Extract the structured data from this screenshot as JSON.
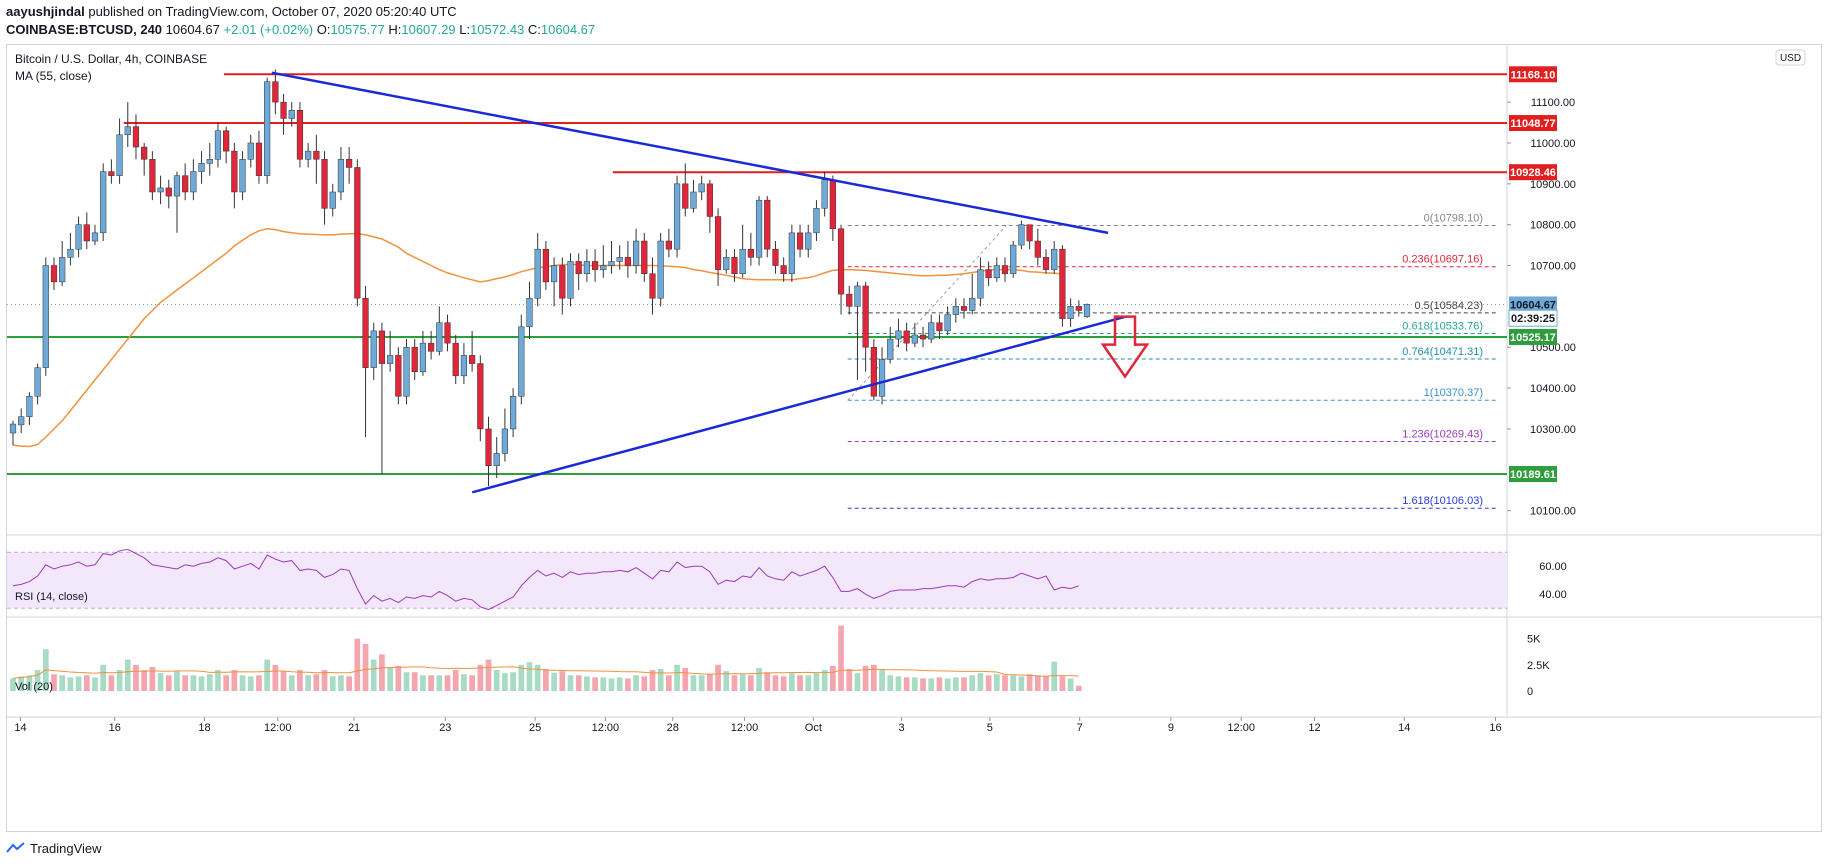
{
  "header": {
    "author": "aayushjindal",
    "published": "published on TradingView.com, October 07, 2020 05:20:40 UTC",
    "symbol": "COINBASE:BTCUSD, 240",
    "last": "10604.67",
    "change": "+2.01 (+0.02%)",
    "o_label": "O:",
    "o": "10575.77",
    "h_label": "H:",
    "h": "10607.29",
    "l_label": "L:",
    "l": "10572.43",
    "c_label": "C:",
    "c": "10604.67"
  },
  "legend": {
    "title": "Bitcoin / U.S. Dollar, 4h, COINBASE",
    "ma": "MA (55, close)",
    "currency": "USD",
    "rsi": "RSI (14, close)",
    "vol": "Vol (20)"
  },
  "footer": {
    "brand": "TradingView"
  },
  "colors": {
    "up": "#6ea9d8",
    "down": "#e0263a",
    "ma": "#f0923e",
    "trend": "#1a2bd6",
    "resistance": "#e02020",
    "support": "#2e9e3c",
    "rsi": "#9c3cb8",
    "vol_up": "#a8dbc4",
    "vol_down": "#f4a6ae",
    "arrow": "#e0263a"
  },
  "chart_data": {
    "type": "candlestick",
    "x_ticks": [
      "14",
      "16",
      "18",
      "12:00",
      "21",
      "23",
      "25",
      "12:00",
      "28",
      "12:00",
      "Oct",
      "3",
      "5",
      "7",
      "9",
      "12:00",
      "12",
      "14",
      "16"
    ],
    "y_ticks": [
      "11100.00",
      "11000.00",
      "10900.00",
      "10800.00",
      "10700.00",
      "10500.00",
      "10400.00",
      "10300.00",
      "10100.00"
    ],
    "ylim": [
      10060,
      11230
    ],
    "price_labels": [
      {
        "value": 11168.1,
        "text": "11168.10",
        "kind": "resistance"
      },
      {
        "value": 11048.77,
        "text": "11048.77",
        "kind": "resistance"
      },
      {
        "value": 10928.46,
        "text": "10928.46",
        "kind": "resistance"
      },
      {
        "value": 10604.67,
        "text": "10604.67",
        "kind": "last"
      },
      {
        "value": 10571.0,
        "text": "02:39:25",
        "kind": "timer"
      },
      {
        "value": 10525.17,
        "text": "10525.17",
        "kind": "support"
      },
      {
        "value": 10189.61,
        "text": "10189.61",
        "kind": "support"
      }
    ],
    "horizontal_levels": [
      {
        "value": 11168.1,
        "from": 0.145,
        "kind": "resistance"
      },
      {
        "value": 11048.77,
        "from": 0.078,
        "kind": "resistance"
      },
      {
        "value": 10928.46,
        "from": 0.405,
        "kind": "resistance"
      },
      {
        "value": 10525.17,
        "from": 0.0,
        "kind": "support"
      },
      {
        "value": 10189.61,
        "from": 0.0,
        "kind": "support"
      }
    ],
    "fibonacci": [
      {
        "ratio": "0",
        "label": "0(10798.10)",
        "value": 10798.1,
        "color": "#888888"
      },
      {
        "ratio": "0.236",
        "label": "0.236(10697.16)",
        "value": 10697.16,
        "color": "#e0263a"
      },
      {
        "ratio": "0.5",
        "label": "0.5(10584.23)",
        "value": 10584.23,
        "color": "#444444"
      },
      {
        "ratio": "0.618",
        "label": "0.618(10533.76)",
        "value": 10533.76,
        "color": "#26a69a"
      },
      {
        "ratio": "0.764",
        "label": "0.764(10471.31)",
        "value": 10471.31,
        "color": "#1f8fae"
      },
      {
        "ratio": "1",
        "label": "1(10370.37)",
        "value": 10370.37,
        "color": "#3b8fd6"
      },
      {
        "ratio": "1.236",
        "label": "1.236(10269.43)",
        "value": 10269.43,
        "color": "#9c3cb8"
      },
      {
        "ratio": "1.618",
        "label": "1.618(10106.03)",
        "value": 10106.03,
        "color": "#2a3bd6"
      }
    ],
    "trendlines": [
      {
        "name": "upper",
        "x1": 0.177,
        "y1": 11172,
        "x2": 0.736,
        "y2": 10780
      },
      {
        "name": "lower",
        "x1": 0.311,
        "y1": 10145,
        "x2": 0.748,
        "y2": 10575
      }
    ],
    "fib_window": [
      0.562,
      0.735
    ],
    "candles": [
      [
        10290,
        10312,
        10260,
        10320
      ],
      [
        10310,
        10330,
        10290,
        10350
      ],
      [
        10330,
        10380,
        10310,
        10390
      ],
      [
        10380,
        10450,
        10360,
        10460
      ],
      [
        10450,
        10700,
        10430,
        10720
      ],
      [
        10700,
        10660,
        10640,
        10720
      ],
      [
        10660,
        10720,
        10650,
        10760
      ],
      [
        10720,
        10740,
        10700,
        10780
      ],
      [
        10740,
        10800,
        10720,
        10820
      ],
      [
        10800,
        10760,
        10740,
        10830
      ],
      [
        10760,
        10780,
        10750,
        10800
      ],
      [
        10780,
        10930,
        10760,
        10950
      ],
      [
        10930,
        10920,
        10900,
        10960
      ],
      [
        10920,
        11020,
        10900,
        11060
      ],
      [
        11020,
        11040,
        10990,
        11100
      ],
      [
        11040,
        10990,
        10960,
        11070
      ],
      [
        10990,
        10960,
        10920,
        11000
      ],
      [
        10960,
        10880,
        10860,
        10980
      ],
      [
        10880,
        10890,
        10850,
        10920
      ],
      [
        10890,
        10870,
        10840,
        10910
      ],
      [
        10870,
        10920,
        10780,
        10930
      ],
      [
        10920,
        10880,
        10860,
        10950
      ],
      [
        10880,
        10930,
        10860,
        10960
      ],
      [
        10930,
        10950,
        10900,
        10980
      ],
      [
        10950,
        10960,
        10920,
        11000
      ],
      [
        10960,
        11030,
        10940,
        11050
      ],
      [
        11030,
        10980,
        10950,
        11040
      ],
      [
        10980,
        10880,
        10840,
        11000
      ],
      [
        10880,
        10960,
        10860,
        10980
      ],
      [
        10960,
        11000,
        10940,
        11020
      ],
      [
        11000,
        10920,
        10900,
        11030
      ],
      [
        10920,
        11150,
        10900,
        11160
      ],
      [
        11150,
        11100,
        11070,
        11180
      ],
      [
        11100,
        11060,
        11020,
        11120
      ],
      [
        11060,
        11080,
        11040,
        11100
      ],
      [
        11080,
        10960,
        10940,
        11100
      ],
      [
        10960,
        10980,
        10940,
        11000
      ],
      [
        10980,
        10960,
        10900,
        11020
      ],
      [
        10960,
        10840,
        10800,
        10980
      ],
      [
        10840,
        10880,
        10820,
        10900
      ],
      [
        10880,
        10960,
        10860,
        10990
      ],
      [
        10960,
        10940,
        10900,
        10990
      ],
      [
        10940,
        10620,
        10600,
        10960
      ],
      [
        10620,
        10450,
        10280,
        10650
      ],
      [
        10450,
        10540,
        10420,
        10560
      ],
      [
        10540,
        10460,
        10190,
        10560
      ],
      [
        10460,
        10480,
        10440,
        10540
      ],
      [
        10480,
        10380,
        10360,
        10500
      ],
      [
        10380,
        10500,
        10360,
        10520
      ],
      [
        10500,
        10440,
        10420,
        10520
      ],
      [
        10440,
        10510,
        10430,
        10540
      ],
      [
        10510,
        10490,
        10470,
        10540
      ],
      [
        10490,
        10560,
        10480,
        10600
      ],
      [
        10560,
        10510,
        10490,
        10580
      ],
      [
        10510,
        10430,
        10410,
        10530
      ],
      [
        10430,
        10480,
        10410,
        10510
      ],
      [
        10480,
        10460,
        10440,
        10540
      ],
      [
        10460,
        10300,
        10270,
        10480
      ],
      [
        10300,
        10210,
        10160,
        10330
      ],
      [
        10210,
        10240,
        10180,
        10280
      ],
      [
        10240,
        10300,
        10220,
        10350
      ],
      [
        10300,
        10380,
        10280,
        10400
      ],
      [
        10380,
        10550,
        10360,
        10580
      ],
      [
        10550,
        10620,
        10520,
        10660
      ],
      [
        10620,
        10740,
        10600,
        10780
      ],
      [
        10740,
        10660,
        10640,
        10760
      ],
      [
        10660,
        10700,
        10600,
        10720
      ],
      [
        10700,
        10620,
        10580,
        10720
      ],
      [
        10620,
        10710,
        10600,
        10730
      ],
      [
        10710,
        10680,
        10640,
        10730
      ],
      [
        10680,
        10710,
        10660,
        10740
      ],
      [
        10710,
        10690,
        10660,
        10740
      ],
      [
        10690,
        10700,
        10670,
        10750
      ],
      [
        10700,
        10710,
        10680,
        10760
      ],
      [
        10710,
        10720,
        10690,
        10750
      ],
      [
        10720,
        10700,
        10670,
        10760
      ],
      [
        10700,
        10760,
        10680,
        10790
      ],
      [
        10760,
        10680,
        10660,
        10780
      ],
      [
        10680,
        10620,
        10580,
        10720
      ],
      [
        10620,
        10760,
        10600,
        10780
      ],
      [
        10760,
        10740,
        10720,
        10790
      ],
      [
        10740,
        10900,
        10720,
        10920
      ],
      [
        10900,
        10840,
        10820,
        10950
      ],
      [
        10840,
        10880,
        10830,
        10910
      ],
      [
        10880,
        10900,
        10860,
        10920
      ],
      [
        10900,
        10820,
        10780,
        10910
      ],
      [
        10820,
        10690,
        10650,
        10840
      ],
      [
        10690,
        10720,
        10680,
        10740
      ],
      [
        10720,
        10680,
        10660,
        10740
      ],
      [
        10680,
        10740,
        10670,
        10800
      ],
      [
        10740,
        10720,
        10700,
        10780
      ],
      [
        10720,
        10860,
        10700,
        10870
      ],
      [
        10860,
        10740,
        10720,
        10870
      ],
      [
        10740,
        10700,
        10680,
        10760
      ],
      [
        10700,
        10680,
        10660,
        10720
      ],
      [
        10680,
        10780,
        10660,
        10800
      ],
      [
        10780,
        10740,
        10720,
        10800
      ],
      [
        10740,
        10780,
        10720,
        10800
      ],
      [
        10780,
        10840,
        10760,
        10860
      ],
      [
        10840,
        10910,
        10820,
        10930
      ],
      [
        10910,
        10790,
        10760,
        10920
      ],
      [
        10790,
        10630,
        10580,
        10800
      ],
      [
        10630,
        10600,
        10580,
        10650
      ],
      [
        10600,
        10650,
        10420,
        10660
      ],
      [
        10650,
        10500,
        10440,
        10660
      ],
      [
        10500,
        10380,
        10370,
        10520
      ],
      [
        10380,
        10470,
        10360,
        10500
      ],
      [
        10470,
        10520,
        10460,
        10550
      ],
      [
        10520,
        10540,
        10500,
        10570
      ],
      [
        10540,
        10510,
        10490,
        10560
      ],
      [
        10510,
        10530,
        10500,
        10560
      ],
      [
        10530,
        10520,
        10500,
        10550
      ],
      [
        10520,
        10560,
        10510,
        10580
      ],
      [
        10560,
        10540,
        10520,
        10580
      ],
      [
        10540,
        10580,
        10530,
        10600
      ],
      [
        10580,
        10600,
        10560,
        10620
      ],
      [
        10600,
        10590,
        10570,
        10620
      ],
      [
        10590,
        10620,
        10580,
        10680
      ],
      [
        10620,
        10690,
        10600,
        10720
      ],
      [
        10690,
        10670,
        10650,
        10710
      ],
      [
        10670,
        10700,
        10660,
        10720
      ],
      [
        10700,
        10680,
        10660,
        10720
      ],
      [
        10680,
        10750,
        10670,
        10760
      ],
      [
        10750,
        10800,
        10740,
        10810
      ],
      [
        10800,
        10760,
        10740,
        10800
      ],
      [
        10760,
        10720,
        10700,
        10790
      ],
      [
        10720,
        10690,
        10680,
        10740
      ],
      [
        10690,
        10740,
        10680,
        10760
      ],
      [
        10740,
        10570,
        10550,
        10750
      ],
      [
        10570,
        10600,
        10550,
        10620
      ],
      [
        10600,
        10590,
        10575,
        10615
      ],
      [
        10575,
        10605,
        10572,
        10607
      ]
    ],
    "ma": [
      10260,
      10258,
      10257,
      10262,
      10280,
      10300,
      10320,
      10345,
      10370,
      10395,
      10420,
      10445,
      10470,
      10495,
      10520,
      10545,
      10570,
      10590,
      10610,
      10625,
      10640,
      10655,
      10670,
      10685,
      10700,
      10715,
      10730,
      10748,
      10762,
      10775,
      10785,
      10790,
      10788,
      10783,
      10780,
      10778,
      10777,
      10776,
      10775,
      10775,
      10777,
      10778,
      10778,
      10775,
      10770,
      10765,
      10755,
      10745,
      10730,
      10720,
      10710,
      10700,
      10690,
      10682,
      10676,
      10670,
      10665,
      10660,
      10663,
      10668,
      10672,
      10678,
      10685,
      10690,
      10695,
      10697,
      10700,
      10702,
      10703,
      10702,
      10700,
      10700,
      10700,
      10700,
      10700,
      10700,
      10700,
      10700,
      10700,
      10699,
      10698,
      10697,
      10695,
      10690,
      10687,
      10683,
      10680,
      10676,
      10672,
      10668,
      10666,
      10665,
      10665,
      10665,
      10665,
      10665,
      10668,
      10670,
      10675,
      10682,
      10688,
      10690,
      10690,
      10689,
      10688,
      10686,
      10684,
      10682,
      10680,
      10678,
      10676,
      10675,
      10675,
      10676,
      10676,
      10678,
      10680,
      10683,
      10686,
      10689,
      10690,
      10690,
      10690,
      10688,
      10685,
      10684,
      10682,
      10681,
      10680
    ],
    "rsi": [
      46,
      47,
      49,
      53,
      61,
      58,
      60,
      61,
      63,
      60,
      61,
      69,
      68,
      71,
      72,
      69,
      66,
      61,
      60,
      59,
      58,
      61,
      60,
      62,
      63,
      66,
      64,
      58,
      60,
      62,
      58,
      68,
      65,
      63,
      64,
      57,
      58,
      57,
      52,
      54,
      58,
      57,
      44,
      33,
      39,
      35,
      37,
      34,
      38,
      37,
      39,
      38,
      42,
      39,
      35,
      37,
      36,
      31,
      29,
      32,
      35,
      38,
      46,
      52,
      57,
      53,
      55,
      52,
      56,
      54,
      55,
      55,
      56,
      56,
      57,
      56,
      59,
      55,
      51,
      57,
      56,
      63,
      59,
      60,
      60,
      56,
      47,
      50,
      49,
      53,
      52,
      59,
      53,
      51,
      50,
      56,
      53,
      55,
      57,
      60,
      52,
      42,
      42,
      44,
      40,
      37,
      39,
      42,
      43,
      43,
      43,
      44,
      44,
      45,
      46,
      46,
      45,
      49,
      51,
      50,
      51,
      51,
      52,
      55,
      53,
      51,
      53,
      43,
      45,
      44,
      46
    ],
    "volume": [
      0.24,
      0.28,
      0.3,
      0.4,
      0.8,
      0.32,
      0.3,
      0.26,
      0.28,
      0.3,
      0.26,
      0.5,
      0.3,
      0.4,
      0.6,
      0.5,
      0.4,
      0.46,
      0.34,
      0.3,
      0.38,
      0.3,
      0.3,
      0.28,
      0.32,
      0.4,
      0.3,
      0.4,
      0.3,
      0.28,
      0.3,
      0.6,
      0.5,
      0.38,
      0.3,
      0.4,
      0.3,
      0.32,
      0.4,
      0.28,
      0.3,
      0.28,
      1.0,
      0.9,
      0.6,
      0.7,
      0.45,
      0.48,
      0.36,
      0.36,
      0.3,
      0.3,
      0.3,
      0.3,
      0.4,
      0.32,
      0.3,
      0.5,
      0.6,
      0.4,
      0.34,
      0.36,
      0.5,
      0.55,
      0.5,
      0.42,
      0.35,
      0.38,
      0.3,
      0.3,
      0.28,
      0.26,
      0.26,
      0.24,
      0.26,
      0.24,
      0.3,
      0.28,
      0.4,
      0.42,
      0.3,
      0.5,
      0.44,
      0.3,
      0.3,
      0.32,
      0.5,
      0.38,
      0.3,
      0.32,
      0.3,
      0.44,
      0.36,
      0.3,
      0.28,
      0.34,
      0.3,
      0.3,
      0.34,
      0.4,
      0.48,
      1.25,
      0.42,
      0.34,
      0.48,
      0.5,
      0.4,
      0.3,
      0.28,
      0.26,
      0.26,
      0.24,
      0.24,
      0.26,
      0.24,
      0.26,
      0.26,
      0.3,
      0.34,
      0.3,
      0.32,
      0.3,
      0.3,
      0.28,
      0.32,
      0.3,
      0.28,
      0.56,
      0.28,
      0.24,
      0.1
    ],
    "rsi_ticks": [
      "60.00",
      "40.00"
    ],
    "vol_ticks": [
      "5K",
      "2.5K",
      "0"
    ]
  }
}
